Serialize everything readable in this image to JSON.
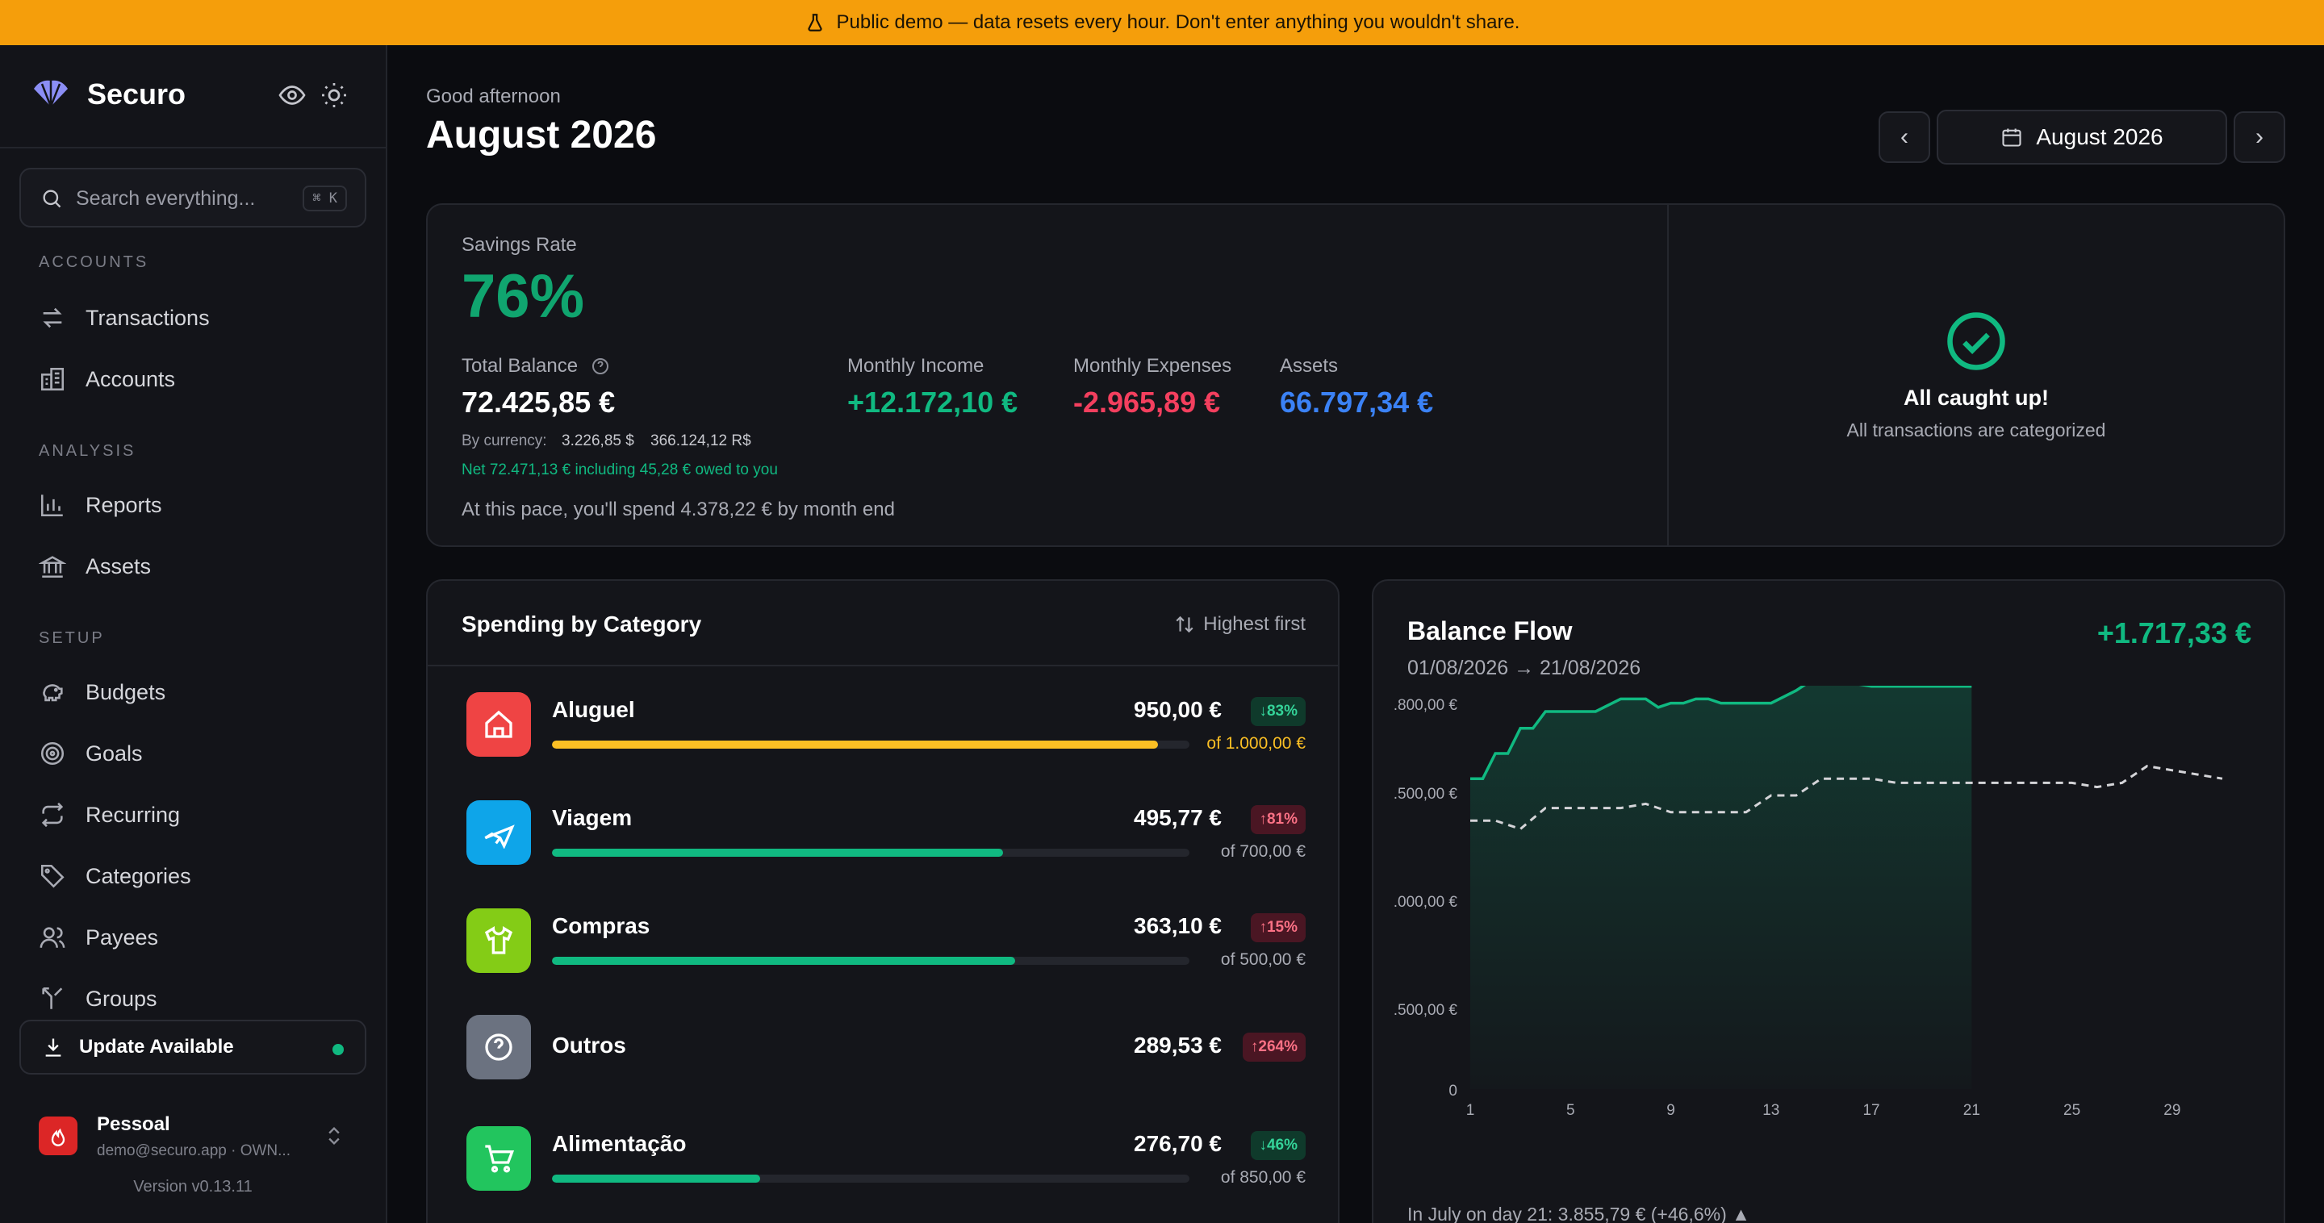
{
  "banner": {
    "text": "Public demo — data resets every hour. Don't enter anything you wouldn't share."
  },
  "sidebar": {
    "brand": "Securo",
    "search_placeholder": "Search everything...",
    "search_shortcut": "⌘ K",
    "sections": {
      "accounts": "ACCOUNTS",
      "analysis": "ANALYSIS",
      "setup": "SETUP"
    },
    "items": {
      "transactions": "Transactions",
      "accounts": "Accounts",
      "reports": "Reports",
      "assets": "Assets",
      "budgets": "Budgets",
      "goals": "Goals",
      "recurring": "Recurring",
      "categories": "Categories",
      "payees": "Payees",
      "groups": "Groups"
    },
    "update": "Update Available",
    "account_name": "Pessoal",
    "account_email": "demo@securo.app · OWN...",
    "version": "Version v0.13.11"
  },
  "header": {
    "greeting": "Good afternoon",
    "title": "August 2026",
    "month_picker": "August 2026",
    "prev": "‹",
    "next": "›"
  },
  "overview": {
    "savings_label": "Savings Rate",
    "savings_rate": "76%",
    "total_balance_label": "Total Balance",
    "total_balance": "72.425,85 €",
    "by_currency_label": "By currency:",
    "by_currency_usd": "3.226,85 $",
    "by_currency_brl": "366.124,12 R$",
    "net_note": "Net 72.471,13 € including 45,28 € owed to you",
    "pace_note": "At this pace, you'll spend 4.378,22 € by month end",
    "income_label": "Monthly Income",
    "income": "+12.172,10 €",
    "expenses_label": "Monthly Expenses",
    "expenses": "-2.965,89 €",
    "assets_label": "Assets",
    "assets": "66.797,34 €",
    "caught_title": "All caught up!",
    "caught_sub": "All transactions are categorized"
  },
  "spending": {
    "title": "Spending by Category",
    "sort_label": "Highest first",
    "categories": [
      {
        "name": "Aluguel",
        "amount": "950,00 €",
        "change": "↓83%",
        "trend": "down",
        "budget": "of 1.000,00 €",
        "progress": 0.95,
        "color": "#fbbf24",
        "icon_bg": "#ef4444",
        "icon": "home-icon"
      },
      {
        "name": "Viagem",
        "amount": "495,77 €",
        "change": "↑81%",
        "trend": "up",
        "budget": "of 700,00 €",
        "progress": 0.708,
        "color": "#10b981",
        "icon_bg": "#0ea5e9",
        "icon": "plane-icon"
      },
      {
        "name": "Compras",
        "amount": "363,10 €",
        "change": "↑15%",
        "trend": "up",
        "budget": "of 500,00 €",
        "progress": 0.726,
        "color": "#10b981",
        "icon_bg": "#84cc16",
        "icon": "shirt-icon"
      },
      {
        "name": "Outros",
        "amount": "289,53 €",
        "change": "↑264%",
        "trend": "up",
        "budget": "",
        "progress": null,
        "color": "#10b981",
        "icon_bg": "#6b7280",
        "icon": "question-icon"
      },
      {
        "name": "Alimentação",
        "amount": "276,70 €",
        "change": "↓46%",
        "trend": "down",
        "budget": "of 850,00 €",
        "progress": 0.326,
        "color": "#10b981",
        "icon_bg": "#22c55e",
        "icon": "cart-icon"
      }
    ]
  },
  "balance_flow": {
    "title": "Balance Flow",
    "range": "01/08/2026 → 21/08/2026",
    "delta": "+1.717,33 €",
    "footnote": "In July on day 21: 3.855,79 € (+46,6%) ▲"
  },
  "chart_data": {
    "type": "area",
    "xlabel": "",
    "ylabel": "",
    "x_ticks": [
      "1",
      "5",
      "9",
      "13",
      "17",
      "21",
      "25",
      "29"
    ],
    "y_ticks": [
      ".800,00 €",
      ".500,00 €",
      ".000,00 €",
      ".500,00 €",
      "0"
    ],
    "series": [
      {
        "style": "solid-area",
        "color": "#10b981",
        "x": [
          1,
          1.5,
          2,
          2.5,
          3,
          3.5,
          4,
          5,
          6,
          7,
          8,
          8.5,
          9,
          9.5,
          10,
          10.5,
          11,
          11.5,
          12,
          13,
          14,
          14.5,
          15,
          16,
          17,
          18,
          19,
          20,
          21
        ],
        "y": [
          0.74,
          0.74,
          0.8,
          0.8,
          0.86,
          0.86,
          0.9,
          0.9,
          0.9,
          0.93,
          0.93,
          0.91,
          0.92,
          0.92,
          0.93,
          0.93,
          0.92,
          0.92,
          0.92,
          0.92,
          0.95,
          0.97,
          0.97,
          0.97,
          0.96,
          0.96,
          0.96,
          0.96,
          0.96
        ]
      },
      {
        "style": "dashed",
        "color": "#d4d4d8",
        "x": [
          1,
          2,
          3,
          4,
          4.5,
          5,
          6,
          7,
          8,
          9,
          10,
          11,
          12,
          13,
          14,
          15,
          16,
          17,
          18,
          19,
          20,
          21,
          22,
          23,
          24,
          25,
          26,
          27,
          28,
          29,
          30,
          31
        ],
        "y": [
          0.64,
          0.64,
          0.62,
          0.67,
          0.67,
          0.67,
          0.67,
          0.67,
          0.68,
          0.66,
          0.66,
          0.66,
          0.66,
          0.7,
          0.7,
          0.74,
          0.74,
          0.74,
          0.73,
          0.73,
          0.73,
          0.73,
          0.73,
          0.73,
          0.73,
          0.73,
          0.72,
          0.73,
          0.77,
          0.76,
          0.75,
          0.74
        ]
      }
    ]
  }
}
